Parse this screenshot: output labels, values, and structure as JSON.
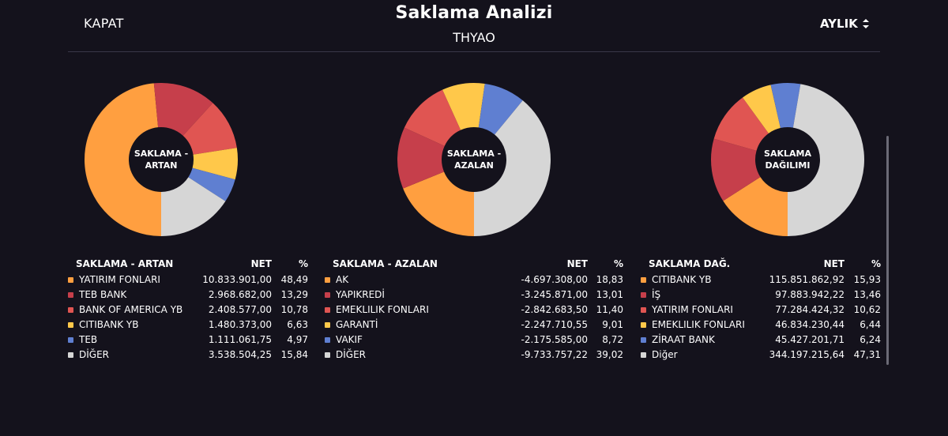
{
  "header": {
    "close_label": "KAPAT",
    "title": "Saklama Analizi",
    "subtitle": "THYAO",
    "period_label": "AYLIK"
  },
  "colors": {
    "orange": "#ff9f40",
    "darkred": "#c63f4b",
    "red": "#e05552",
    "yellow": "#ffc84a",
    "blue": "#5f7fd1",
    "gray": "#d6d6d6",
    "hole": "#14121c"
  },
  "chart_data": [
    {
      "type": "pie",
      "title": "SAKLAMA - ARTAN",
      "center_label": [
        "SAKLAMA -",
        "ARTAN"
      ],
      "categories": [
        "YATIRIM FONLARI",
        "TEB BANK",
        "BANK OF AMERICA YB",
        "CITIBANK YB",
        "TEB",
        "DİĞER"
      ],
      "values": [
        48.49,
        13.29,
        10.78,
        6.63,
        4.97,
        15.84
      ],
      "colors": [
        "#ff9f40",
        "#c63f4b",
        "#e05552",
        "#ffc84a",
        "#5f7fd1",
        "#d6d6d6"
      ]
    },
    {
      "type": "pie",
      "title": "SAKLAMA - AZALAN",
      "center_label": [
        "SAKLAMA -",
        "AZALAN"
      ],
      "categories": [
        "AK",
        "YAPIKREDİ",
        "EMEKLILIK FONLARI",
        "GARANTİ",
        "VAKIF",
        "DİĞER"
      ],
      "values": [
        18.83,
        13.01,
        11.4,
        9.01,
        8.72,
        39.02
      ],
      "colors": [
        "#ff9f40",
        "#c63f4b",
        "#e05552",
        "#ffc84a",
        "#5f7fd1",
        "#d6d6d6"
      ]
    },
    {
      "type": "pie",
      "title": "SAKLAMA DAĞILIMI",
      "center_label": [
        "SAKLAMA",
        "DAĞILIMI"
      ],
      "categories": [
        "CITIBANK YB",
        "İŞ",
        "YATIRIM FONLARI",
        "EMEKLILIK FONLARI",
        "ZİRAAT BANK",
        "Diğer"
      ],
      "values": [
        15.93,
        13.46,
        10.62,
        6.44,
        6.24,
        47.31
      ],
      "colors": [
        "#ff9f40",
        "#c63f4b",
        "#e05552",
        "#ffc84a",
        "#5f7fd1",
        "#d6d6d6"
      ]
    }
  ],
  "tables": [
    {
      "head": "SAKLAMA - ARTAN",
      "net_label": "NET",
      "pct_label": "%",
      "rows": [
        {
          "name": "YATIRIM FONLARI",
          "net": "10.833.901,00",
          "pct": "48,49",
          "color": "#ff9f40"
        },
        {
          "name": "TEB BANK",
          "net": "2.968.682,00",
          "pct": "13,29",
          "color": "#c63f4b"
        },
        {
          "name": "BANK OF AMERICA YB",
          "net": "2.408.577,00",
          "pct": "10,78",
          "color": "#e05552"
        },
        {
          "name": "CITIBANK YB",
          "net": "1.480.373,00",
          "pct": "6,63",
          "color": "#ffc84a"
        },
        {
          "name": "TEB",
          "net": "1.111.061,75",
          "pct": "4,97",
          "color": "#5f7fd1"
        },
        {
          "name": "DİĞER",
          "net": "3.538.504,25",
          "pct": "15,84",
          "color": "#d6d6d6"
        }
      ]
    },
    {
      "head": "SAKLAMA - AZALAN",
      "net_label": "NET",
      "pct_label": "%",
      "rows": [
        {
          "name": "AK",
          "net": "-4.697.308,00",
          "pct": "18,83",
          "color": "#ff9f40"
        },
        {
          "name": "YAPIKREDİ",
          "net": "-3.245.871,00",
          "pct": "13,01",
          "color": "#c63f4b"
        },
        {
          "name": "EMEKLILIK FONLARI",
          "net": "-2.842.683,50",
          "pct": "11,40",
          "color": "#e05552"
        },
        {
          "name": "GARANTİ",
          "net": "-2.247.710,55",
          "pct": "9,01",
          "color": "#ffc84a"
        },
        {
          "name": "VAKIF",
          "net": "-2.175.585,00",
          "pct": "8,72",
          "color": "#5f7fd1"
        },
        {
          "name": "DİĞER",
          "net": "-9.733.757,22",
          "pct": "39,02",
          "color": "#d6d6d6"
        }
      ]
    },
    {
      "head": "SAKLAMA DAĞ.",
      "net_label": "NET",
      "pct_label": "%",
      "rows": [
        {
          "name": "CITIBANK YB",
          "net": "115.851.862,92",
          "pct": "15,93",
          "color": "#ff9f40"
        },
        {
          "name": "İŞ",
          "net": "97.883.942,22",
          "pct": "13,46",
          "color": "#c63f4b"
        },
        {
          "name": "YATIRIM FONLARI",
          "net": "77.284.424,32",
          "pct": "10,62",
          "color": "#e05552"
        },
        {
          "name": "EMEKLILIK FONLARI",
          "net": "46.834.230,44",
          "pct": "6,44",
          "color": "#ffc84a"
        },
        {
          "name": "ZİRAAT BANK",
          "net": "45.427.201,71",
          "pct": "6,24",
          "color": "#5f7fd1"
        },
        {
          "name": "Diğer",
          "net": "344.197.215,64",
          "pct": "47,31",
          "color": "#d6d6d6"
        }
      ]
    }
  ]
}
